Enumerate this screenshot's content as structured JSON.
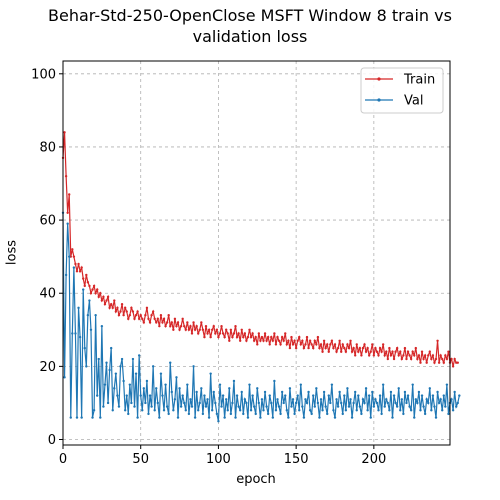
{
  "chart_data": {
    "type": "line",
    "title_line1": "Behar-Std-250-OpenClose MSFT Window 8 train vs",
    "title_line2": "validation loss",
    "xlabel": "epoch",
    "ylabel": "loss",
    "xlim": [
      0,
      249
    ],
    "ylim": [
      -1.5,
      103.5
    ],
    "xticks": [
      "0",
      "50",
      "100",
      "150",
      "200"
    ],
    "yticks": [
      "0",
      "20",
      "40",
      "60",
      "80",
      "100"
    ],
    "grid": true,
    "legend_position": "top-right",
    "colors": {
      "train": "#d62728",
      "val": "#1f77b4"
    },
    "series": [
      {
        "name": "Train",
        "values": [
          77,
          84,
          72,
          62,
          67,
          50,
          52,
          50,
          48,
          46,
          48,
          46,
          47,
          44,
          42,
          45,
          43,
          42,
          40,
          41,
          42,
          40,
          41,
          39,
          40,
          38,
          39,
          37,
          38,
          39,
          36,
          37,
          36,
          38,
          35,
          36,
          34,
          35,
          37,
          34,
          36,
          35,
          33,
          34,
          36,
          35,
          33,
          34,
          35,
          33,
          34,
          33,
          32,
          34,
          36,
          33,
          32,
          34,
          35,
          33,
          32,
          33,
          31,
          34,
          32,
          33,
          31,
          32,
          34,
          31,
          32,
          30,
          33,
          31,
          32,
          30,
          31,
          33,
          31,
          30,
          32,
          30,
          31,
          29,
          32,
          30,
          31,
          29,
          30,
          32,
          30,
          28,
          31,
          29,
          30,
          28,
          30,
          31,
          29,
          30,
          28,
          29,
          31,
          29,
          28,
          30,
          29,
          27,
          30,
          28,
          29,
          31,
          28,
          29,
          27,
          30,
          28,
          29,
          27,
          28,
          30,
          28,
          29,
          27,
          28,
          26,
          29,
          27,
          28,
          27,
          29,
          27,
          28,
          26,
          28,
          27,
          29,
          26,
          28,
          27,
          26,
          28,
          27,
          29,
          26,
          27,
          25,
          28,
          26,
          27,
          25,
          27,
          28,
          26,
          27,
          25,
          26,
          28,
          25,
          27,
          26,
          25,
          27,
          26,
          28,
          25,
          26,
          24,
          27,
          25,
          26,
          24,
          26,
          27,
          25,
          26,
          24,
          25,
          27,
          24,
          26,
          25,
          24,
          26,
          25,
          27,
          24,
          25,
          23,
          26,
          24,
          25,
          23,
          25,
          26,
          24,
          25,
          23,
          24,
          26,
          23,
          25,
          24,
          23,
          25,
          24,
          26,
          23,
          24,
          22,
          25,
          23,
          24,
          22,
          24,
          25,
          23,
          24,
          22,
          23,
          25,
          22,
          24,
          23,
          22,
          24,
          23,
          25,
          22,
          23,
          21,
          24,
          22,
          23,
          21,
          23,
          24,
          22,
          23,
          21,
          22,
          27,
          21,
          23,
          22,
          21,
          23,
          22,
          24,
          21,
          22,
          20,
          22,
          21,
          21
        ]
      },
      {
        "name": "Val",
        "values": [
          62,
          17,
          45,
          59,
          50,
          6,
          29,
          47,
          29,
          6,
          36,
          28,
          6,
          41,
          25,
          20,
          34,
          38,
          30,
          6,
          8,
          34,
          12,
          22,
          6,
          31,
          9,
          15,
          21,
          10,
          19,
          25,
          8,
          14,
          18,
          12,
          9,
          20,
          22,
          16,
          8,
          12,
          7,
          15,
          10,
          22,
          9,
          18,
          6,
          23,
          12,
          8,
          14,
          10,
          16,
          7,
          12,
          9,
          20,
          8,
          14,
          10,
          6,
          18,
          12,
          8,
          15,
          9,
          7,
          21,
          13,
          8,
          11,
          17,
          6,
          14,
          9,
          12,
          10,
          8,
          15,
          7,
          11,
          9,
          20,
          6,
          13,
          8,
          10,
          14,
          7,
          12,
          9,
          11,
          6,
          18,
          8,
          13,
          10,
          7,
          5,
          15,
          9,
          12,
          6,
          11,
          8,
          14,
          7,
          10,
          16,
          6,
          12,
          9,
          8,
          13,
          7,
          11,
          10,
          6,
          15,
          8,
          12,
          9,
          7,
          14,
          10,
          6,
          11,
          8,
          13,
          9,
          7,
          12,
          10,
          6,
          16,
          8,
          11,
          9,
          7,
          13,
          10,
          12,
          8,
          6,
          14,
          9,
          11,
          7,
          10,
          12,
          8,
          15,
          9,
          6,
          11,
          10,
          13,
          8,
          7,
          12,
          9,
          14,
          10,
          6,
          11,
          8,
          13,
          9,
          7,
          12,
          10,
          15,
          8,
          6,
          11,
          9,
          13,
          10,
          7,
          12,
          8,
          14,
          9,
          11,
          6,
          10,
          13,
          8,
          12,
          9,
          7,
          11,
          10,
          14,
          8,
          12,
          6,
          13,
          9,
          11,
          10,
          8,
          12,
          7,
          15,
          9,
          11,
          10,
          8,
          13,
          6,
          12,
          10,
          9,
          14,
          8,
          11,
          7,
          13,
          10,
          12,
          9,
          8,
          15,
          6,
          11,
          10,
          13,
          8,
          12,
          9,
          7,
          11,
          10,
          14,
          8,
          12,
          9,
          6,
          13,
          10,
          11,
          8,
          12,
          9,
          15,
          7,
          10,
          11,
          8,
          13,
          9,
          10,
          12
        ]
      }
    ]
  }
}
